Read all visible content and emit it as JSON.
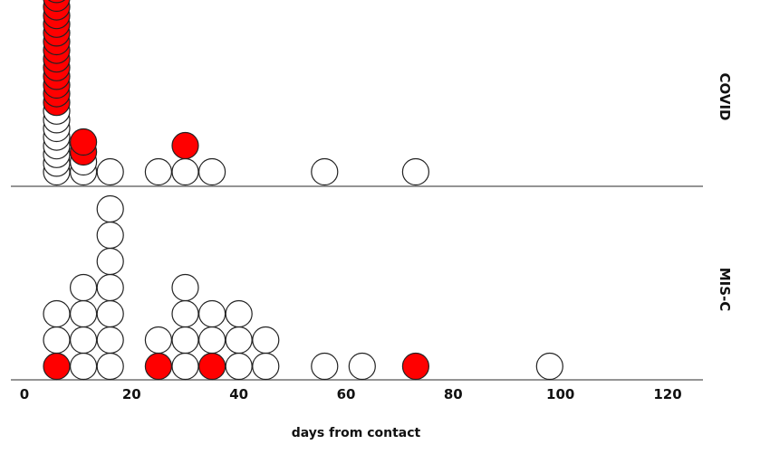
{
  "chart_data": {
    "type": "scatter",
    "subtype": "dot-plot",
    "xlabel": "days from contact",
    "xlim": [
      -2,
      127
    ],
    "xticks": [
      0,
      20,
      40,
      60,
      80,
      100,
      120
    ],
    "grid": false,
    "colors": {
      "highlighted": "#ff0000",
      "default": "#ffffff",
      "outline": "#222222"
    },
    "panels": [
      {
        "label": "COVID",
        "stacks": [
          {
            "x": 6,
            "dots": [
              "white",
              "white",
              "white",
              "white",
              "white",
              "white",
              "white",
              "white",
              "red",
              "red",
              "red",
              "red",
              "red",
              "red",
              "red",
              "red",
              "red",
              "red",
              "red",
              "red",
              "red",
              "red",
              "red",
              "red"
            ]
          },
          {
            "x": 11,
            "dots": [
              "white",
              "white",
              "red",
              "red"
            ]
          },
          {
            "x": 16,
            "dots": [
              "white"
            ]
          },
          {
            "x": 25,
            "dots": [
              "white"
            ]
          },
          {
            "x": 30,
            "dots": [
              "white",
              "red"
            ]
          },
          {
            "x": 35,
            "dots": [
              "white"
            ]
          },
          {
            "x": 56,
            "dots": [
              "white"
            ]
          },
          {
            "x": 73,
            "dots": [
              "white"
            ]
          }
        ]
      },
      {
        "label": "MIS-C",
        "stacks": [
          {
            "x": 6,
            "dots": [
              "red",
              "white",
              "white"
            ]
          },
          {
            "x": 11,
            "dots": [
              "white",
              "white",
              "white",
              "white"
            ]
          },
          {
            "x": 16,
            "dots": [
              "white",
              "white",
              "white",
              "white",
              "white",
              "white",
              "white"
            ]
          },
          {
            "x": 25,
            "dots": [
              "red",
              "white"
            ]
          },
          {
            "x": 30,
            "dots": [
              "white",
              "white",
              "white",
              "white"
            ]
          },
          {
            "x": 35,
            "dots": [
              "red",
              "white",
              "white"
            ]
          },
          {
            "x": 40,
            "dots": [
              "white",
              "white",
              "white"
            ]
          },
          {
            "x": 45,
            "dots": [
              "white",
              "white"
            ]
          },
          {
            "x": 56,
            "dots": [
              "white"
            ]
          },
          {
            "x": 63,
            "dots": [
              "white"
            ]
          },
          {
            "x": 73,
            "dots": [
              "red"
            ]
          },
          {
            "x": 98,
            "dots": [
              "white"
            ]
          }
        ]
      }
    ]
  }
}
